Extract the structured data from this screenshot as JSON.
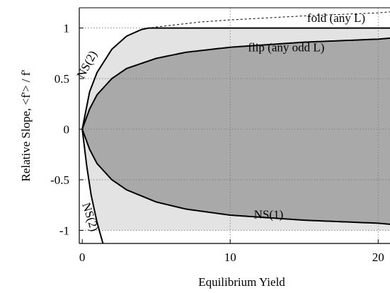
{
  "chart_data": {
    "type": "area",
    "xlabel": "Equilibrium Yield",
    "ylabel": "Relative Slope, <f'> / f'",
    "xlim": [
      -0.2,
      20.8
    ],
    "ylim": [
      -1.13,
      1.2
    ],
    "x_ticks": [
      0,
      10,
      20
    ],
    "x_tick_labels": [
      "0",
      "10",
      "20"
    ],
    "y_ticks": [
      1,
      0.5,
      0,
      -0.5,
      -1
    ],
    "y_tick_labels": [
      "1",
      "0.5",
      "0",
      "-0.5",
      "-1"
    ],
    "grid": true,
    "colors": {
      "light_region": "#e3e3e3",
      "dark_region": "#a9a9a9",
      "curve": "#000000"
    },
    "series": [
      {
        "name": "fold (any L)",
        "style": "solid + dashed continuation",
        "x": [
          0,
          0.5,
          1,
          2,
          3,
          4,
          4.5,
          5,
          8,
          10,
          15,
          20,
          20.8
        ],
        "y": [
          0,
          0.37,
          0.56,
          0.79,
          0.92,
          0.985,
          1.0,
          1.01,
          1.06,
          1.08,
          1.12,
          1.15,
          1.16
        ]
      },
      {
        "name": "flip (any odd L)",
        "x": [
          0,
          0.5,
          1,
          2,
          3,
          5,
          7,
          10,
          15,
          20,
          20.8
        ],
        "y": [
          0,
          0.2,
          0.34,
          0.5,
          0.6,
          0.7,
          0.76,
          0.81,
          0.86,
          0.89,
          0.9
        ]
      },
      {
        "name": "NS(1)",
        "x": [
          0,
          0.5,
          1,
          2,
          3,
          5,
          7,
          10,
          15,
          20,
          20.8
        ],
        "y": [
          0,
          -0.2,
          -0.34,
          -0.5,
          -0.6,
          -0.72,
          -0.79,
          -0.85,
          -0.9,
          -0.93,
          -0.94
        ]
      },
      {
        "name": "NS(2)",
        "x": [
          0,
          0.3,
          0.6,
          1,
          1.4
        ],
        "y": [
          0,
          -0.36,
          -0.65,
          -0.92,
          -1.13
        ]
      }
    ],
    "annotations": [
      {
        "text": "fold (any L)",
        "x": 15.2,
        "y": 1.06
      },
      {
        "text": "flip (any odd L)",
        "x": 11.2,
        "y": 0.77
      },
      {
        "text": "NS(1)",
        "x": 11.6,
        "y": -0.88
      },
      {
        "text": "NS(2)",
        "x": 0.55,
        "y": 0.62,
        "rotation": -62
      },
      {
        "text": "NS(2)",
        "x": 0.3,
        "y": -0.88,
        "rotation": 72
      }
    ]
  }
}
